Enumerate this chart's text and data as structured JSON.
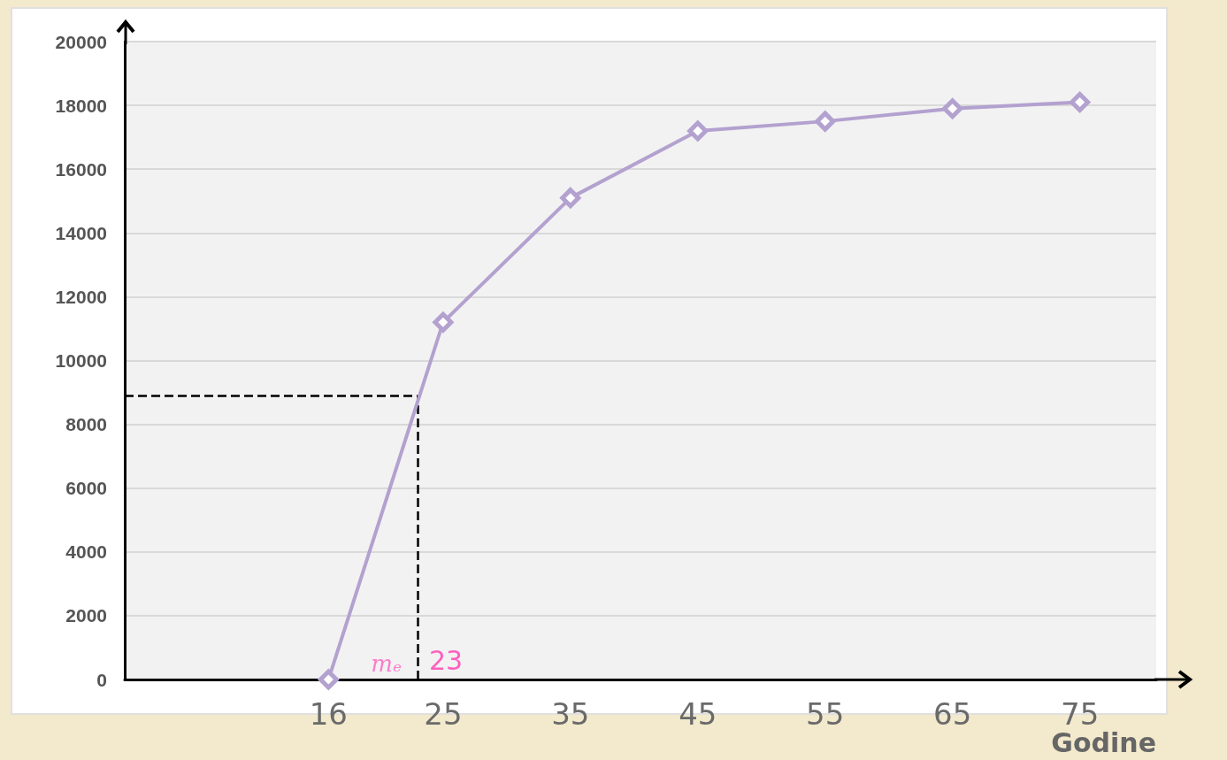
{
  "chart_data": {
    "type": "line",
    "xlabel": "Godine",
    "x": [
      16,
      25,
      35,
      45,
      55,
      65,
      75
    ],
    "series": [
      {
        "color": "#b3a1cf",
        "values": [
          0,
          11200,
          15100,
          17200,
          17500,
          17900,
          18100
        ]
      }
    ],
    "xlim": [
      0,
      81
    ],
    "xticks": [
      16,
      25,
      35,
      45,
      55,
      65,
      75
    ],
    "ylim": [
      0,
      20000
    ],
    "yticks": [
      0,
      2000,
      4000,
      6000,
      8000,
      10000,
      12000,
      14000,
      16000,
      18000,
      20000
    ],
    "grid": "y",
    "marker": "diamond",
    "line_style": "solid",
    "ref_lines": [
      {
        "axis": "x",
        "value": 23,
        "label": "23",
        "color": "#000000",
        "line_style": "dashed"
      },
      {
        "axis": "y",
        "value": 8900,
        "color": "#000000",
        "line_style": "dashed"
      }
    ],
    "annotations": [
      {
        "text": "mₑ",
        "x": 23,
        "y": 0
      }
    ]
  }
}
